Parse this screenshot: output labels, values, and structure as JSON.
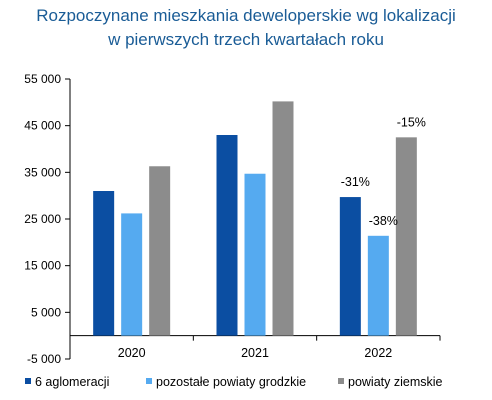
{
  "chart_data": {
    "type": "bar",
    "title_lines": [
      "Rozpoczynane mieszkania deweloperskie wg lokalizacji",
      "w pierwszych trzech kwartałach roku"
    ],
    "categories": [
      "2020",
      "2021",
      "2022"
    ],
    "series": [
      {
        "name": "6 aglomeracji",
        "color": "#0b4ea2",
        "values": [
          31000,
          43000,
          29700
        ]
      },
      {
        "name": "pozostałe powiaty grodzkie",
        "color": "#55aaf0",
        "values": [
          26200,
          34700,
          21400
        ]
      },
      {
        "name": "powiaty ziemskie",
        "color": "#8c8c8c",
        "values": [
          36300,
          50200,
          42500
        ]
      }
    ],
    "ylim": [
      -5000,
      55000
    ],
    "yticks": [
      -5000,
      5000,
      15000,
      25000,
      35000,
      45000,
      55000
    ],
    "ytick_labels": [
      "-5 000",
      "5 000",
      "15 000",
      "25 000",
      "35 000",
      "45 000",
      "55 000"
    ],
    "annotations": [
      {
        "category": "2022",
        "series": 0,
        "text": "-31%"
      },
      {
        "category": "2022",
        "series": 1,
        "text": "-38%"
      },
      {
        "category": "2022",
        "series": 2,
        "text": "-15%"
      }
    ],
    "legend_position": "bottom",
    "grid": false
  }
}
